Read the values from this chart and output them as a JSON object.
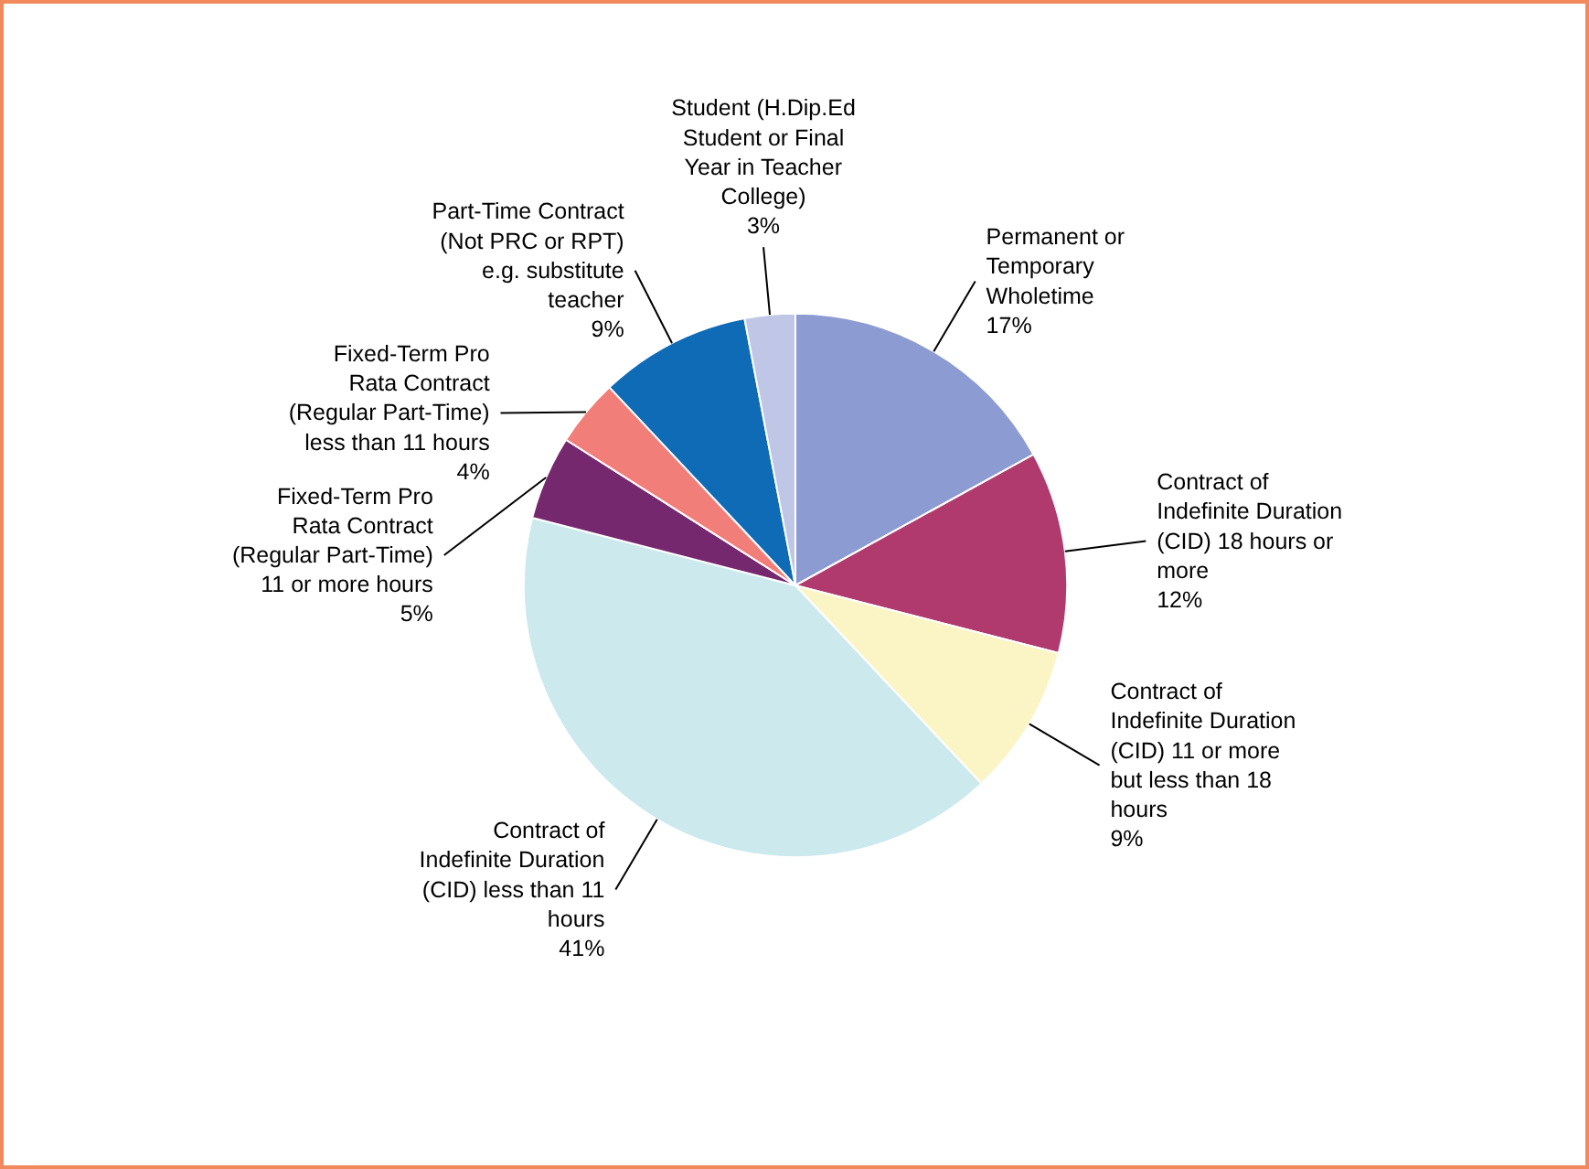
{
  "chart_data": {
    "type": "pie",
    "categories": [
      "Permanent or\nTemporary\nWholetime",
      "Contract of\nIndefinite Duration\n(CID) 18 hours or\nmore",
      "Contract of\nIndefinite Duration\n(CID) 11 or more\nbut less than 18\nhours",
      "Contract of\nIndefinite Duration\n(CID) less than 11\nhours",
      "Fixed-Term Pro\nRata Contract\n(Regular Part-Time)\n11 or more hours",
      "Fixed-Term Pro\nRata Contract\n(Regular Part-Time)\nless than 11 hours",
      "Part-Time Contract\n(Not PRC or RPT)\ne.g. substitute\nteacher",
      "Student (H.Dip.Ed\nStudent or Final\nYear in Teacher\nCollege)"
    ],
    "values": [
      17,
      12,
      9,
      41,
      5,
      4,
      9,
      3
    ],
    "value_labels": [
      "17%",
      "12%",
      "9%",
      "41%",
      "5%",
      "4%",
      "9%",
      "3%"
    ],
    "colors": [
      "#8c9bd2",
      "#b03a6e",
      "#fbf5c6",
      "#cce9ee",
      "#76286f",
      "#f27e7a",
      "#0f6bb6",
      "#bfc6e6"
    ]
  }
}
